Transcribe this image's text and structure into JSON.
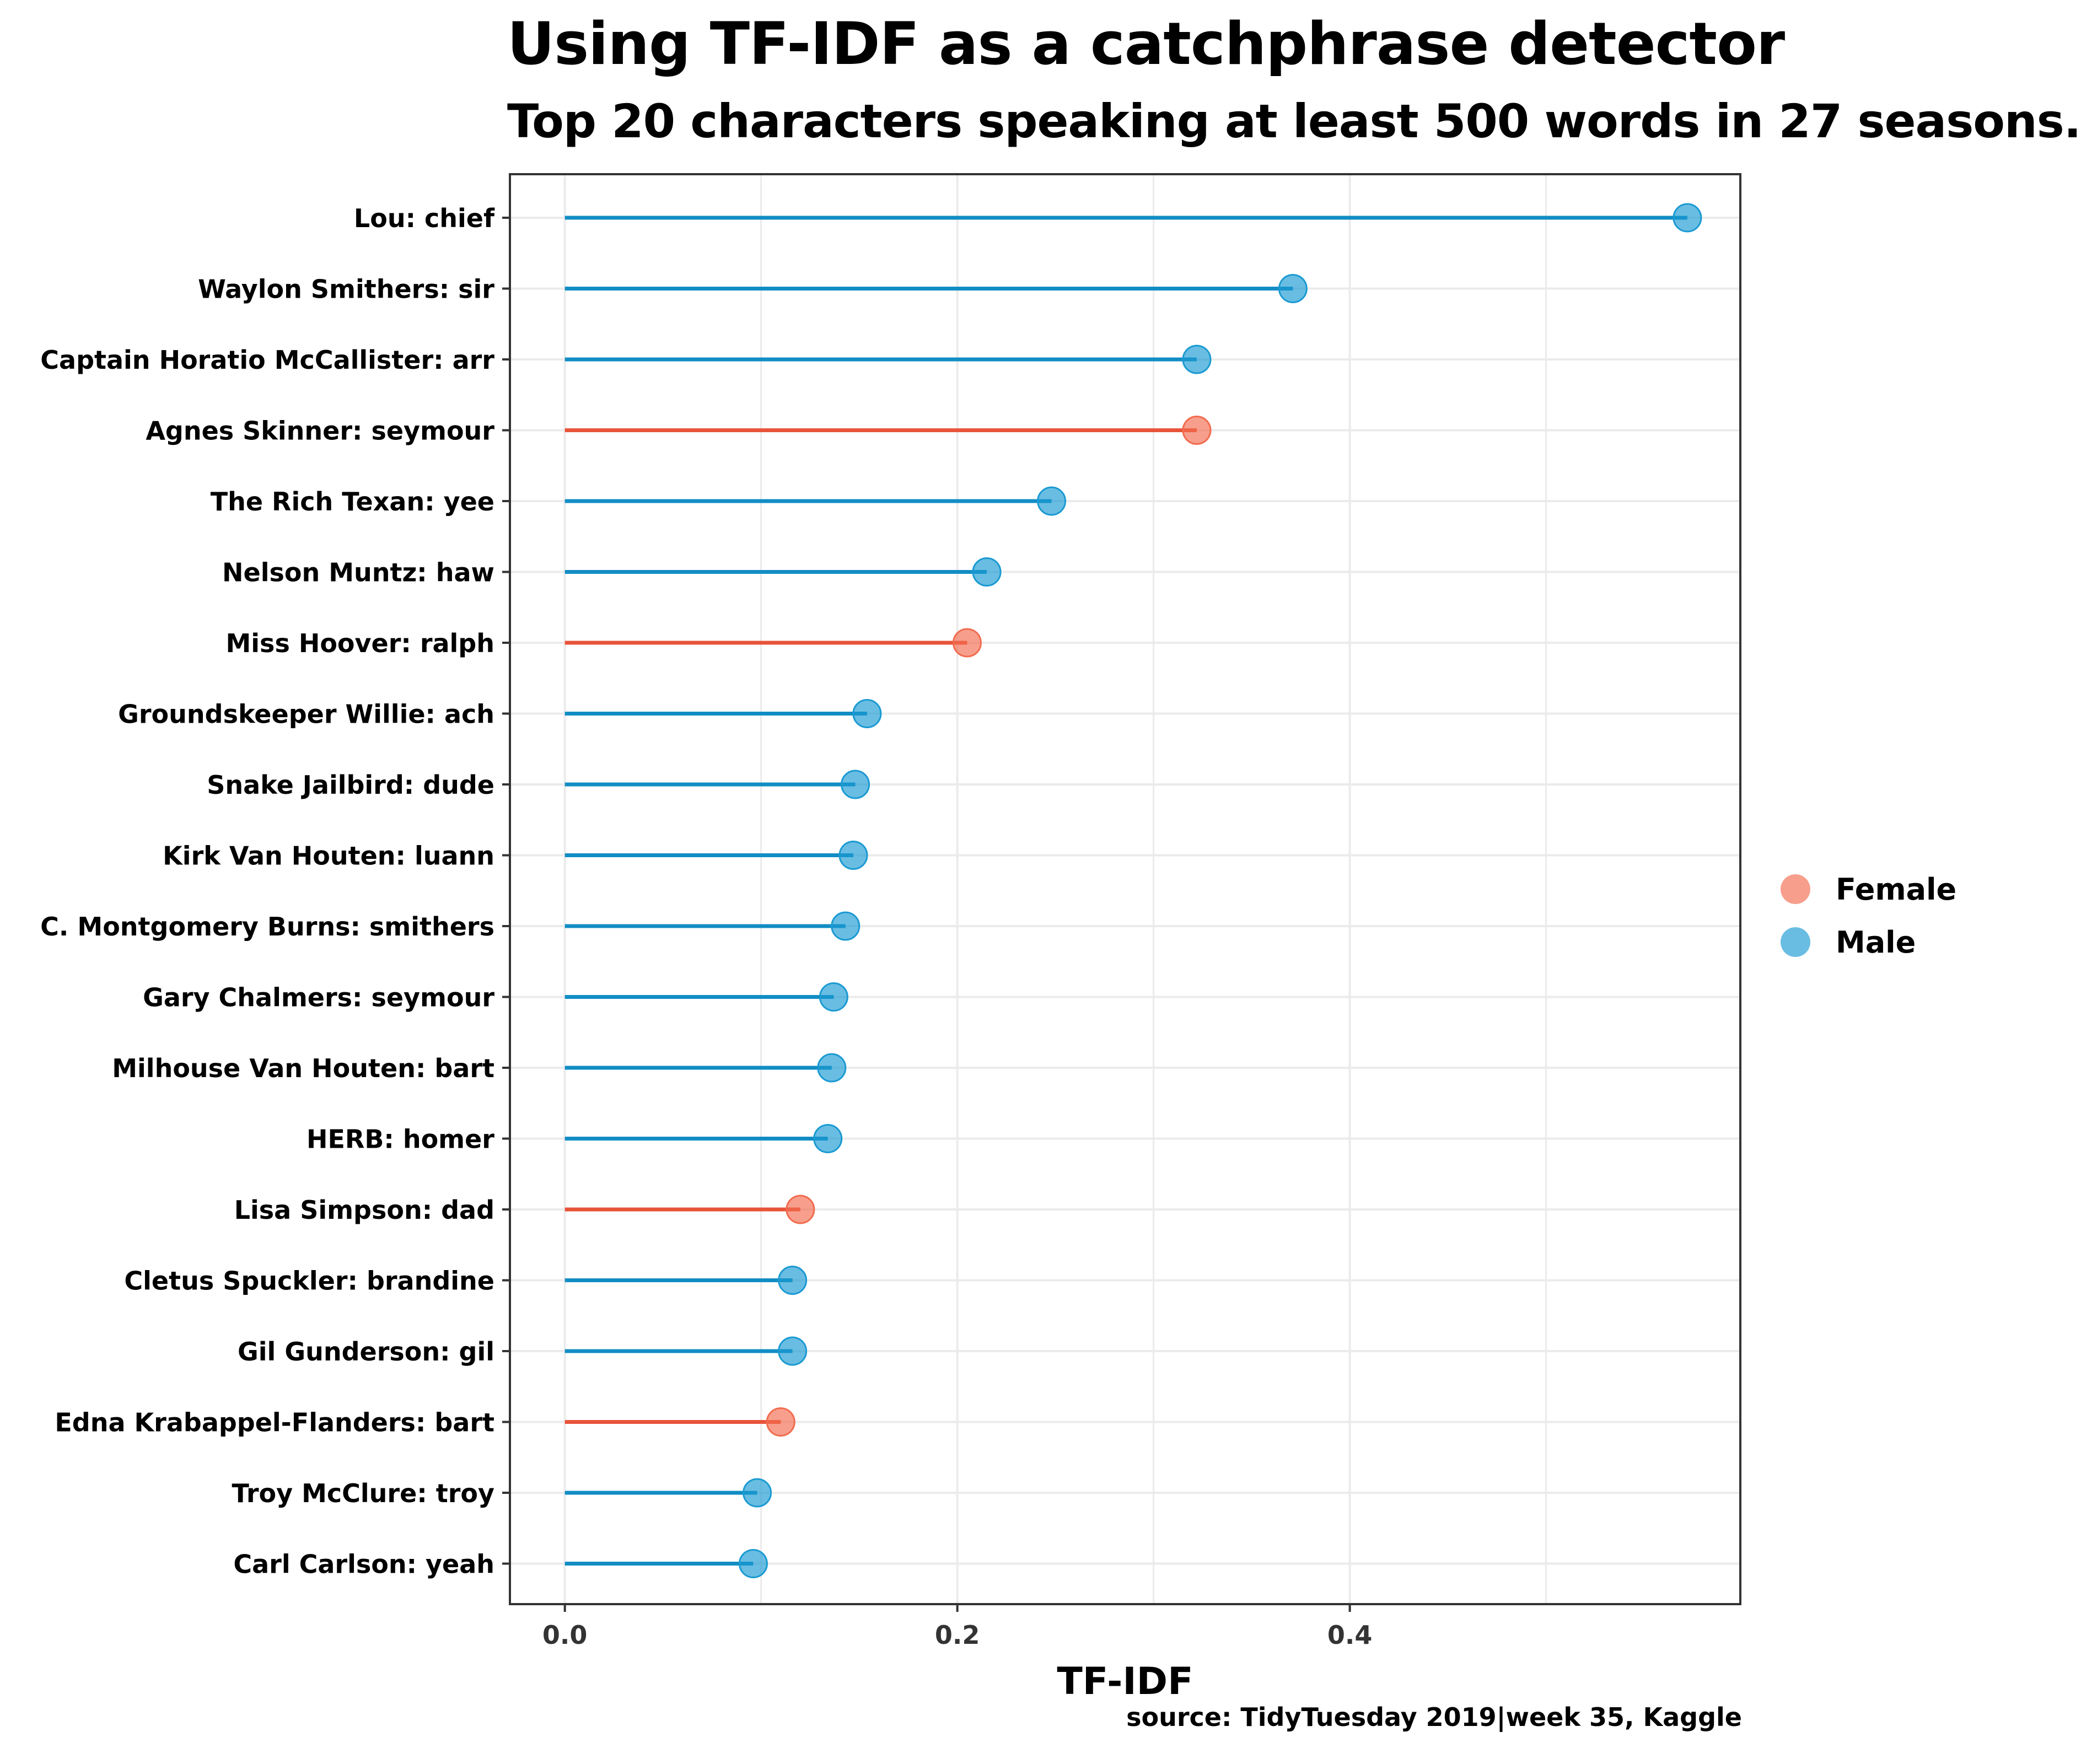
{
  "chart_data": {
    "type": "lollipop",
    "title": "Using TF-IDF as a catchphrase detector",
    "subtitle": "Top 20 characters speaking at least 500 words in 27 seasons.",
    "caption": "source: TidyTuesday 2019|week 35, Kaggle",
    "xlabel": "TF-IDF",
    "ylabel": "",
    "xlim": [
      -0.028,
      0.599
    ],
    "x_ticks": [
      0.0,
      0.2,
      0.4
    ],
    "x_tick_labels": [
      "0.0",
      "0.2",
      "0.4"
    ],
    "grid": true,
    "legend": {
      "position": "right",
      "entries": [
        {
          "name": "Female",
          "color": "#f26b4f"
        },
        {
          "name": "Male",
          "color": "#1a9ad2"
        }
      ]
    },
    "colors": {
      "Female": "#f26b4f",
      "Male": "#1a9ad2",
      "Female_segment": "#e8543a",
      "Male_segment": "#128dc4"
    },
    "points": [
      {
        "label": "Lou: chief",
        "value": 0.572,
        "gender": "Male"
      },
      {
        "label": "Waylon Smithers: sir",
        "value": 0.371,
        "gender": "Male"
      },
      {
        "label": "Captain Horatio McCallister: arr",
        "value": 0.322,
        "gender": "Male"
      },
      {
        "label": "Agnes Skinner: seymour",
        "value": 0.322,
        "gender": "Female"
      },
      {
        "label": "The Rich Texan: yee",
        "value": 0.248,
        "gender": "Male"
      },
      {
        "label": "Nelson Muntz: haw",
        "value": 0.215,
        "gender": "Male"
      },
      {
        "label": "Miss Hoover: ralph",
        "value": 0.205,
        "gender": "Female"
      },
      {
        "label": "Groundskeeper Willie: ach",
        "value": 0.154,
        "gender": "Male"
      },
      {
        "label": "Snake Jailbird: dude",
        "value": 0.148,
        "gender": "Male"
      },
      {
        "label": "Kirk Van Houten: luann",
        "value": 0.147,
        "gender": "Male"
      },
      {
        "label": "C. Montgomery Burns: smithers",
        "value": 0.143,
        "gender": "Male"
      },
      {
        "label": "Gary Chalmers: seymour",
        "value": 0.137,
        "gender": "Male"
      },
      {
        "label": "Milhouse Van Houten: bart",
        "value": 0.136,
        "gender": "Male"
      },
      {
        "label": "HERB: homer",
        "value": 0.134,
        "gender": "Male"
      },
      {
        "label": "Lisa Simpson: dad",
        "value": 0.12,
        "gender": "Female"
      },
      {
        "label": "Cletus Spuckler: brandine",
        "value": 0.116,
        "gender": "Male"
      },
      {
        "label": "Gil Gunderson: gil",
        "value": 0.116,
        "gender": "Male"
      },
      {
        "label": "Edna Krabappel-Flanders: bart",
        "value": 0.11,
        "gender": "Female"
      },
      {
        "label": "Troy McClure: troy",
        "value": 0.098,
        "gender": "Male"
      },
      {
        "label": "Carl Carlson: yeah",
        "value": 0.096,
        "gender": "Male"
      }
    ]
  }
}
